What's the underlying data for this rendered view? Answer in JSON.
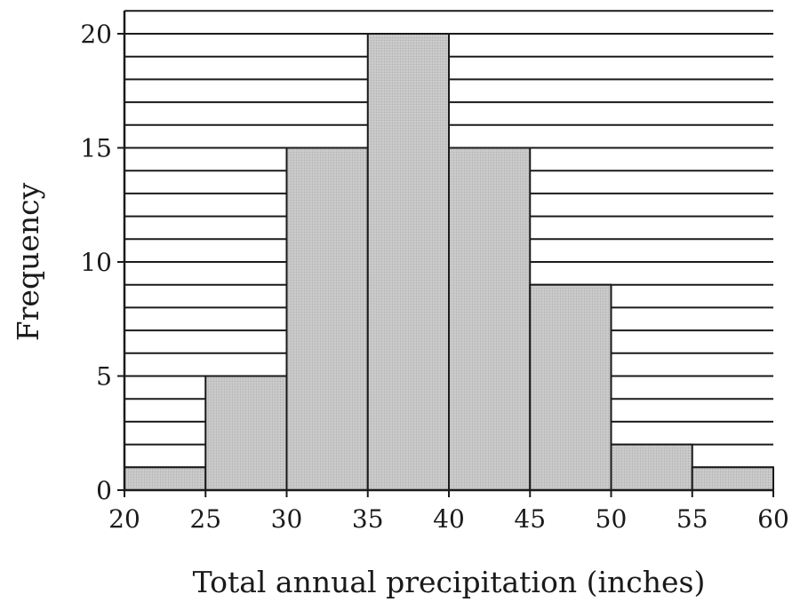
{
  "chart_data": {
    "type": "bar",
    "title": "",
    "xlabel": "Total annual precipitation (inches)",
    "ylabel": "Frequency",
    "bin_edges": [
      20,
      25,
      30,
      35,
      40,
      45,
      50,
      55,
      60
    ],
    "values": [
      1,
      5,
      15,
      20,
      15,
      9,
      2,
      1
    ],
    "xlim": [
      20,
      60
    ],
    "ylim": [
      0,
      21
    ],
    "x_ticks": [
      "20",
      "25",
      "30",
      "35",
      "40",
      "45",
      "50",
      "55",
      "60"
    ],
    "y_ticks": [
      "0",
      "5",
      "10",
      "15",
      "20"
    ],
    "gridlines": "horizontal, every 1 unit",
    "bar_color": "#c8c8c8",
    "edge_color": "#1a1a1a"
  }
}
